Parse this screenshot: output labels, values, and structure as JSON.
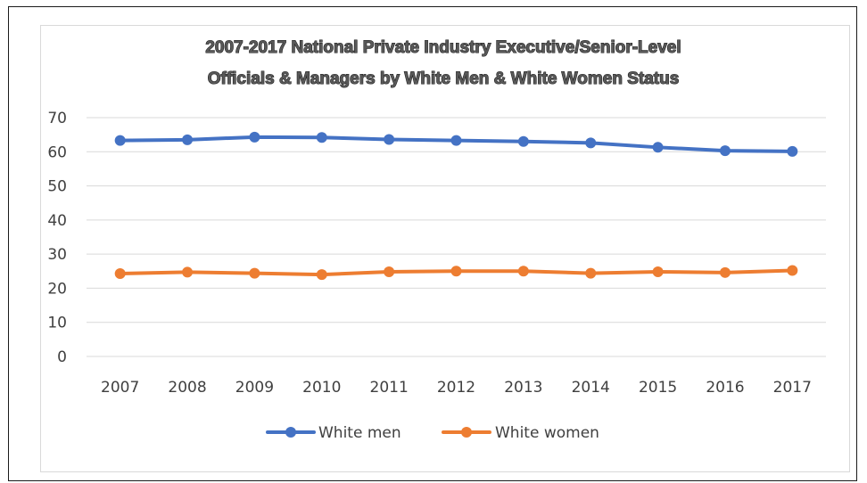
{
  "chart_data": {
    "type": "line",
    "title_lines": [
      "2007-2017 National Private Industry Executive/Senior-Level",
      "Officials & Managers by White Men & White Women Status"
    ],
    "x": [
      "2007",
      "2008",
      "2009",
      "2010",
      "2011",
      "2012",
      "2013",
      "2014",
      "2015",
      "2016",
      "2017"
    ],
    "series": [
      {
        "name": "White men",
        "color": "#4472C4",
        "values": [
          63.3,
          63.5,
          64.3,
          64.2,
          63.6,
          63.3,
          63.0,
          62.6,
          61.3,
          60.3,
          60.1
        ]
      },
      {
        "name": "White women",
        "color": "#ED7D31",
        "values": [
          24.3,
          24.7,
          24.4,
          24.0,
          24.8,
          25.0,
          25.0,
          24.4,
          24.8,
          24.6,
          25.2
        ]
      }
    ],
    "ylim": [
      0,
      70
    ],
    "yticks": [
      "0",
      "10",
      "20",
      "30",
      "40",
      "50",
      "60",
      "70"
    ],
    "grid": true,
    "legend": "bottom-center"
  }
}
